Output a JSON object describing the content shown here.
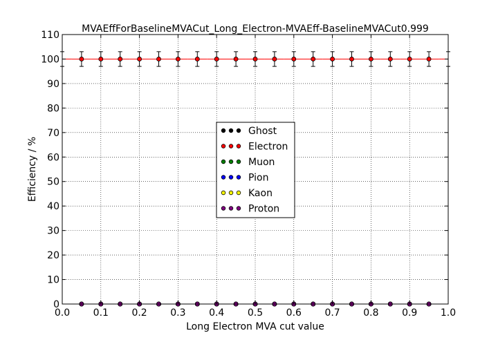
{
  "chart_data": {
    "type": "scatter",
    "title": "MVAEffForBaselineMVACut_Long_Electron-MVAEff-BaselineMVACut0.999",
    "xlabel": "Long Electron MVA cut value",
    "ylabel": "Efficiency / %",
    "xlim": [
      0.0,
      1.0
    ],
    "ylim": [
      0,
      110
    ],
    "xticks": [
      "0.0",
      "0.1",
      "0.2",
      "0.3",
      "0.4",
      "0.5",
      "0.6",
      "0.7",
      "0.8",
      "0.9",
      "1.0"
    ],
    "yticks": [
      "0",
      "10",
      "20",
      "30",
      "40",
      "50",
      "60",
      "70",
      "80",
      "90",
      "100",
      "110"
    ],
    "grid": true,
    "legend_position": "center",
    "x": [
      0.0,
      0.05,
      0.1,
      0.15,
      0.2,
      0.25,
      0.3,
      0.35,
      0.4,
      0.45,
      0.5,
      0.55,
      0.6,
      0.65,
      0.7,
      0.75,
      0.8,
      0.85,
      0.9,
      0.95,
      1.0
    ],
    "series": [
      {
        "name": "Ghost",
        "color": "#000000",
        "values": [
          0,
          0,
          0,
          0,
          0,
          0,
          0,
          0,
          0,
          0,
          0,
          0,
          0,
          0,
          0,
          0,
          0,
          0,
          0,
          0,
          0
        ]
      },
      {
        "name": "Electron",
        "color": "#ff0000",
        "values": [
          100,
          100,
          100,
          100,
          100,
          100,
          100,
          100,
          100,
          100,
          100,
          100,
          100,
          100,
          100,
          100,
          100,
          100,
          100,
          100,
          100
        ],
        "yerr": 3
      },
      {
        "name": "Muon",
        "color": "#008000",
        "values": [
          0,
          0,
          0,
          0,
          0,
          0,
          0,
          0,
          0,
          0,
          0,
          0,
          0,
          0,
          0,
          0,
          0,
          0,
          0,
          0,
          0
        ]
      },
      {
        "name": "Pion",
        "color": "#0000ff",
        "values": [
          0,
          0,
          0,
          0,
          0,
          0,
          0,
          0,
          0,
          0,
          0,
          0,
          0,
          0,
          0,
          0,
          0,
          0,
          0,
          0,
          0
        ]
      },
      {
        "name": "Kaon",
        "color": "#ffff00",
        "values": [
          0,
          0,
          0,
          0,
          0,
          0,
          0,
          0,
          0,
          0,
          0,
          0,
          0,
          0,
          0,
          0,
          0,
          0,
          0,
          0,
          0
        ]
      },
      {
        "name": "Proton",
        "color": "#800080",
        "values": [
          0,
          0,
          0,
          0,
          0,
          0,
          0,
          0,
          0,
          0,
          0,
          0,
          0,
          0,
          0,
          0,
          0,
          0,
          0,
          0,
          0
        ]
      }
    ]
  }
}
